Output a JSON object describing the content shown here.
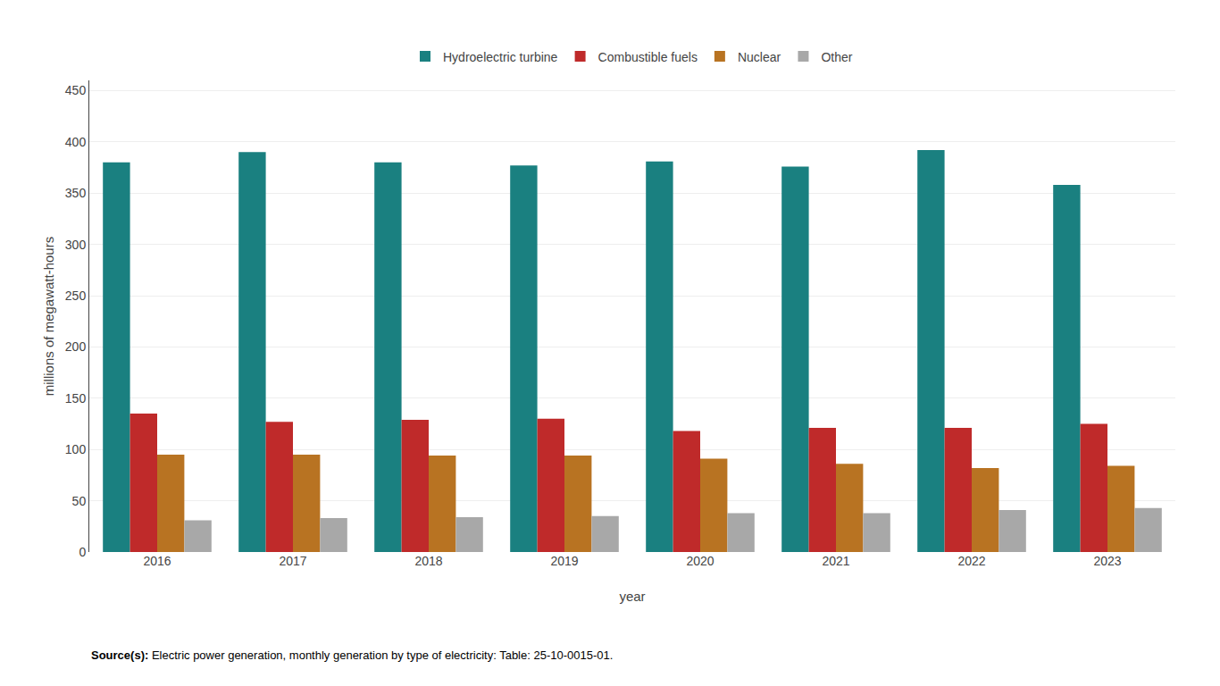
{
  "chart_data": {
    "type": "bar",
    "categories": [
      "2016",
      "2017",
      "2018",
      "2019",
      "2020",
      "2021",
      "2022",
      "2023"
    ],
    "series": [
      {
        "name": "Hydroelectric turbine",
        "color": "#1a8080",
        "values": [
          380,
          390,
          380,
          377,
          381,
          376,
          392,
          358
        ]
      },
      {
        "name": "Combustible fuels",
        "color": "#bf2a2a",
        "values": [
          135,
          127,
          129,
          130,
          118,
          121,
          121,
          125
        ]
      },
      {
        "name": "Nuclear",
        "color": "#b87322",
        "values": [
          95,
          95,
          94,
          94,
          91,
          86,
          82,
          84
        ]
      },
      {
        "name": "Other",
        "color": "#a8a8a8",
        "values": [
          31,
          33,
          34,
          35,
          38,
          38,
          41,
          43
        ]
      }
    ],
    "xlabel": "year",
    "ylabel": "millions of megawatt-hours",
    "ylim": [
      0,
      460
    ],
    "yticks": [
      0,
      50,
      100,
      150,
      200,
      250,
      300,
      350,
      400,
      450
    ],
    "grid": true,
    "legend": "top",
    "annotations": [
      "Source(s): Electric power generation, monthly generation by type of electricity: Table: 25-10-0015-01."
    ]
  }
}
